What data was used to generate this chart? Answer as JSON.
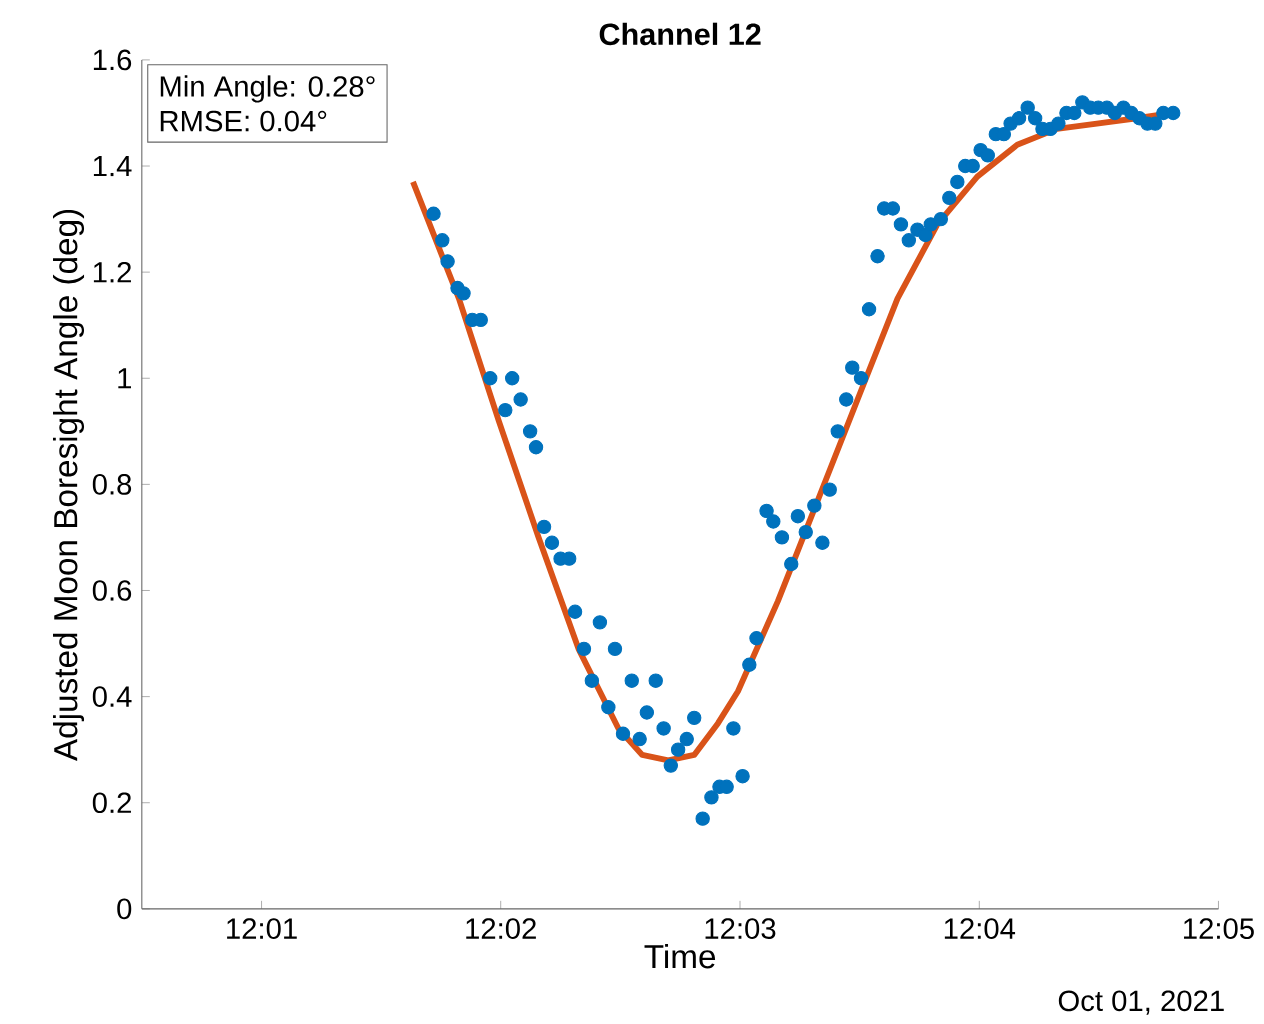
{
  "chart_data": {
    "type": "scatter",
    "title": "Channel 12",
    "xlabel": "Time",
    "ylabel": "Adjusted Moon Boresight Angle (deg)",
    "annotations": [
      "Min Angle: 0.28°",
      "RMSE: 0.04°",
      "Oct 01, 2021"
    ],
    "xlim": [
      12.00833,
      12.08333
    ],
    "ylim": [
      0,
      1.6
    ],
    "xticks": [
      {
        "value": 12.01667,
        "label": "12:01"
      },
      {
        "value": 12.03333,
        "label": "12:02"
      },
      {
        "value": 12.05,
        "label": "12:03"
      },
      {
        "value": 12.06667,
        "label": "12:04"
      },
      {
        "value": 12.08333,
        "label": "12:05"
      }
    ],
    "yticks": [
      0,
      0.2,
      0.4,
      0.6,
      0.8,
      1,
      1.2,
      1.4,
      1.6
    ],
    "grid": false,
    "series": [
      {
        "marker": "circle",
        "color": "#0072bd",
        "x": [
          12.02865,
          12.02926,
          12.02963,
          12.03032,
          12.03074,
          12.03135,
          12.03194,
          12.0326,
          12.03365,
          12.03413,
          12.03472,
          12.03538,
          12.03579,
          12.03635,
          12.0369,
          12.0375,
          12.0381,
          12.03851,
          12.03913,
          12.03968,
          12.04024,
          12.04083,
          12.04129,
          12.04185,
          12.04246,
          12.04301,
          12.04351,
          12.04413,
          12.04468,
          12.04518,
          12.04569,
          12.04629,
          12.04681,
          12.0474,
          12.04801,
          12.04857,
          12.04907,
          12.04954,
          12.05018,
          12.05065,
          12.05115,
          12.05185,
          12.05232,
          12.05292,
          12.05357,
          12.05403,
          12.05458,
          12.05518,
          12.05574,
          12.05625,
          12.05681,
          12.0574,
          12.05782,
          12.05843,
          12.05899,
          12.05958,
          12.06004,
          12.06065,
          12.06121,
          12.06176,
          12.06236,
          12.06292,
          12.06329,
          12.06399,
          12.06458,
          12.06514,
          12.06569,
          12.06621,
          12.06676,
          12.06726,
          12.06782,
          12.06838,
          12.06885,
          12.06944,
          12.07004,
          12.07056,
          12.07107,
          12.07163,
          12.07218,
          12.07274,
          12.07329,
          12.07385,
          12.0744,
          12.07496,
          12.07556,
          12.07611,
          12.07671,
          12.07726,
          12.07782,
          12.07838,
          12.07893,
          12.07949,
          12.08018
        ],
        "values": [
          1.31,
          1.26,
          1.22,
          1.17,
          1.16,
          1.11,
          1.11,
          1.0,
          0.94,
          1.0,
          0.96,
          0.9,
          0.87,
          0.72,
          0.69,
          0.66,
          0.66,
          0.56,
          0.49,
          0.43,
          0.54,
          0.38,
          0.49,
          0.33,
          0.43,
          0.32,
          0.37,
          0.43,
          0.34,
          0.27,
          0.3,
          0.32,
          0.36,
          0.17,
          0.21,
          0.23,
          0.23,
          0.34,
          0.25,
          0.46,
          0.51,
          0.75,
          0.73,
          0.7,
          0.65,
          0.74,
          0.71,
          0.76,
          0.69,
          0.79,
          0.9,
          0.96,
          1.02,
          1.0,
          1.13,
          1.23,
          1.32,
          1.32,
          1.29,
          1.26,
          1.28,
          1.27,
          1.29,
          1.3,
          1.34,
          1.37,
          1.4,
          1.4,
          1.43,
          1.42,
          1.46,
          1.46,
          1.48,
          1.49,
          1.51,
          1.49,
          1.47,
          1.47,
          1.48,
          1.5,
          1.5,
          1.52,
          1.51,
          1.51,
          1.51,
          1.5,
          1.51,
          1.5,
          1.49,
          1.48,
          1.48,
          1.5,
          1.5
        ]
      },
      {
        "type": "line",
        "color": "#d95319",
        "x": [
          12.02722,
          12.03042,
          12.03319,
          12.03597,
          12.03875,
          12.04153,
          12.04319,
          12.045,
          12.04681,
          12.04847,
          12.04986,
          12.05264,
          12.05542,
          12.05819,
          12.06097,
          12.06375,
          12.06653,
          12.06931,
          12.07208,
          12.07486,
          12.07764,
          12.08014
        ],
        "values": [
          1.37,
          1.15,
          0.92,
          0.7,
          0.49,
          0.34,
          0.29,
          0.28,
          0.29,
          0.35,
          0.41,
          0.58,
          0.77,
          0.96,
          1.15,
          1.29,
          1.38,
          1.44,
          1.47,
          1.48,
          1.49,
          1.5
        ]
      }
    ]
  }
}
